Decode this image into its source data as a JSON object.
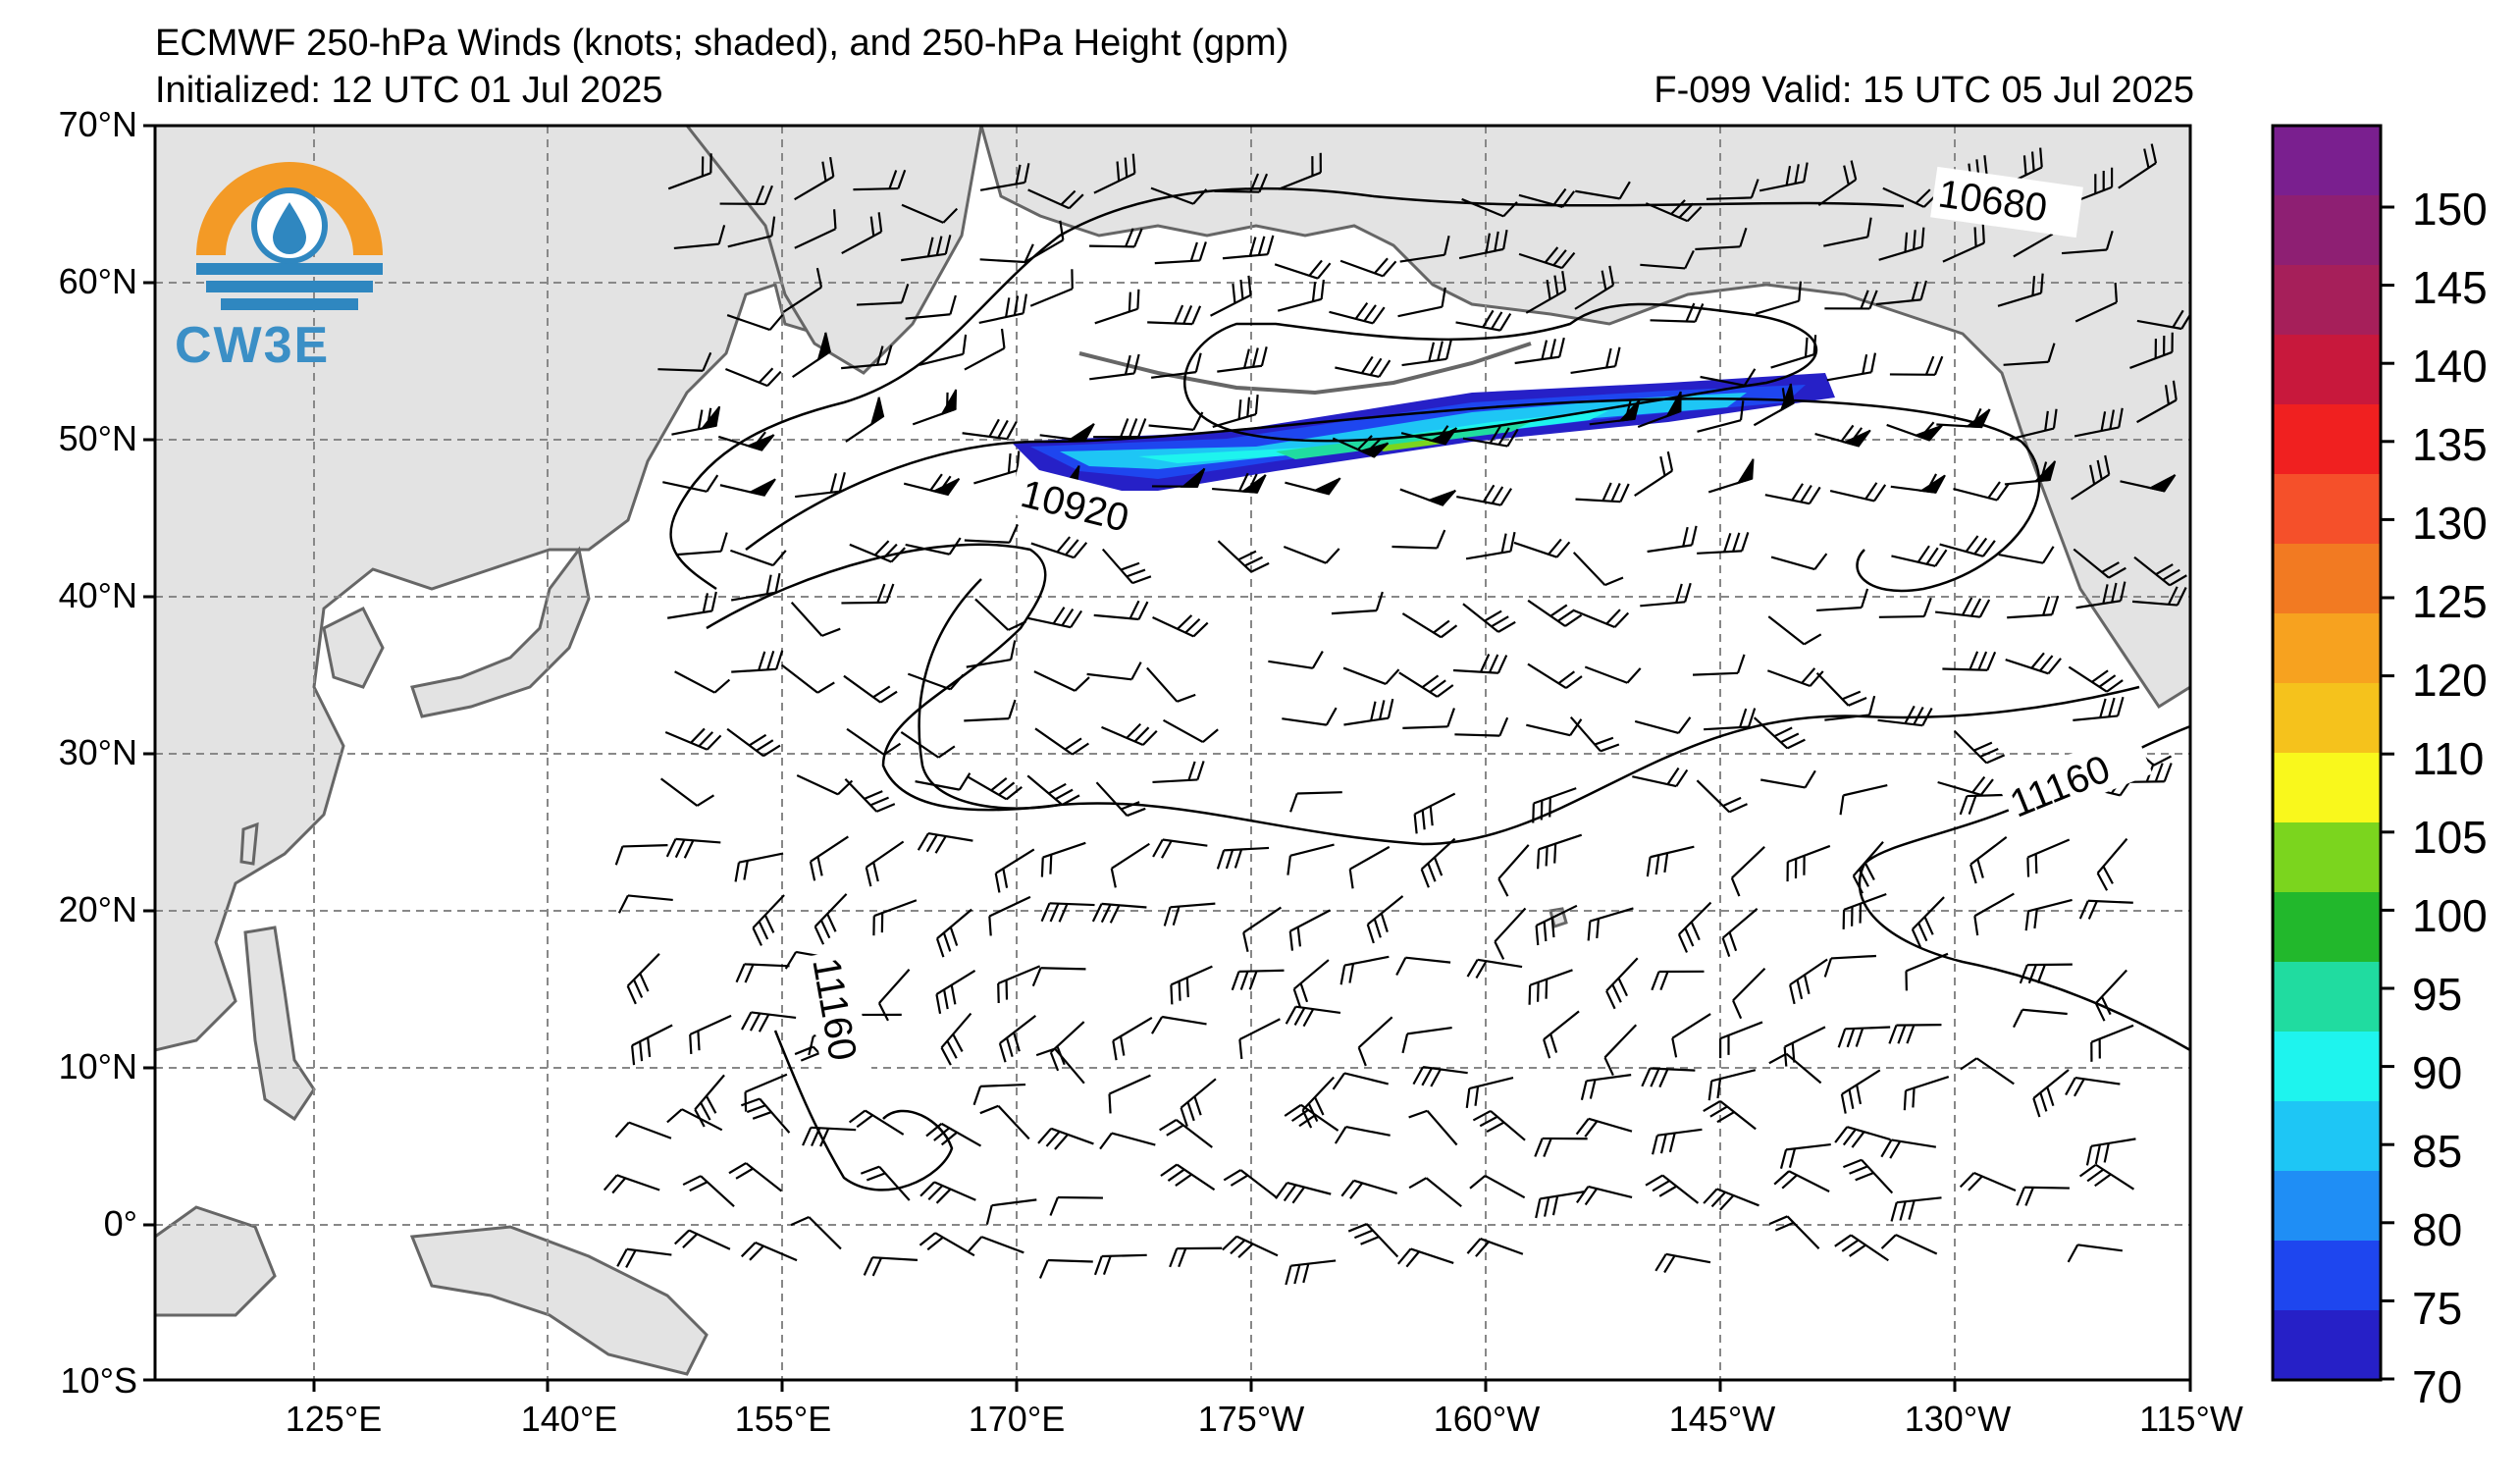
{
  "header": {
    "title": "ECMWF 250-hPa Winds (knots; shaded), and 250-hPa Height (gpm)",
    "initialized": "Initialized: 12 UTC 01 Jul 2025",
    "valid": "F-099  Valid: 15 UTC 05 Jul 2025"
  },
  "logo": {
    "text": "CW3E",
    "colors": {
      "orange": "#f39a26",
      "blue": "#2f87c0"
    }
  },
  "axes": {
    "lat_labels": [
      "70°N",
      "60°N",
      "50°N",
      "40°N",
      "30°N",
      "20°N",
      "10°N",
      "0°",
      "10°S"
    ],
    "lon_labels": [
      "125°E",
      "140°E",
      "155°E",
      "170°E",
      "175°W",
      "160°W",
      "145°W",
      "130°W",
      "115°W"
    ]
  },
  "contours": {
    "labels": [
      "10680",
      "10920",
      "11160",
      "11160"
    ]
  },
  "colorbar": {
    "levels": [
      "150",
      "145",
      "140",
      "135",
      "130",
      "125",
      "120",
      "110",
      "105",
      "100",
      "95",
      "90",
      "85",
      "80",
      "75",
      "70"
    ],
    "colors": [
      "#7a1f8f",
      "#8e1f73",
      "#a61f5a",
      "#c8183c",
      "#f02020",
      "#f5502a",
      "#f27a22",
      "#f7a21f",
      "#f5c21c",
      "#f9f81c",
      "#7bd51e",
      "#22b82c",
      "#20dca0",
      "#1ef4ee",
      "#1ec6f5",
      "#1f8ef5",
      "#1e46ef",
      "#2620c7"
    ]
  },
  "map": {
    "land_color": "#e3e3e3",
    "coast_color": "#666666",
    "grid_color": "#888888"
  }
}
